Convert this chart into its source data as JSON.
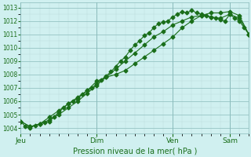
{
  "xlabel": "Pression niveau de la mer( hPa )",
  "bg_color": "#d0f0f0",
  "line_color": "#1a6e1a",
  "grid_major_color": "#8bbcbc",
  "grid_minor_color": "#b8dcdc",
  "ylim": [
    1003.6,
    1013.4
  ],
  "yticks": [
    1004,
    1005,
    1006,
    1007,
    1008,
    1009,
    1010,
    1011,
    1012,
    1013
  ],
  "xlim": [
    0,
    48
  ],
  "day_labels": [
    "Jeu",
    "Dim",
    "Ven",
    "Sam"
  ],
  "day_positions": [
    0,
    16,
    32,
    44
  ],
  "series1_x": [
    0,
    1,
    2,
    3,
    4,
    5,
    6,
    7,
    8,
    9,
    10,
    11,
    12,
    13,
    14,
    15,
    16,
    17,
    18,
    19,
    20,
    21,
    22,
    23,
    24,
    25,
    26,
    27,
    28,
    29,
    30,
    31,
    32,
    33,
    34,
    35,
    36,
    37,
    38,
    39,
    40,
    41,
    42,
    43,
    44,
    45,
    46,
    47,
    48
  ],
  "series1_y": [
    1004.5,
    1004.1,
    1004.0,
    1004.2,
    1004.3,
    1004.4,
    1004.5,
    1004.8,
    1005.2,
    1005.5,
    1005.8,
    1006.0,
    1006.2,
    1006.5,
    1006.8,
    1007.0,
    1007.3,
    1007.6,
    1007.9,
    1008.2,
    1008.6,
    1009.0,
    1009.3,
    1009.8,
    1010.2,
    1010.5,
    1010.9,
    1011.1,
    1011.5,
    1011.8,
    1011.9,
    1012.0,
    1012.3,
    1012.5,
    1012.7,
    1012.6,
    1012.8,
    1012.6,
    1012.5,
    1012.4,
    1012.3,
    1012.2,
    1012.1,
    1012.0,
    1012.5,
    1012.2,
    1012.0,
    1011.5,
    1011.0
  ],
  "series2_x": [
    0,
    2,
    4,
    6,
    8,
    10,
    12,
    14,
    16,
    18,
    20,
    22,
    24,
    26,
    28,
    30,
    32,
    34,
    36,
    38,
    40,
    42,
    44,
    46,
    48
  ],
  "series2_y": [
    1004.5,
    1004.1,
    1004.3,
    1004.6,
    1005.0,
    1005.5,
    1006.0,
    1006.6,
    1007.2,
    1007.8,
    1008.4,
    1009.0,
    1009.6,
    1010.2,
    1010.8,
    1011.2,
    1011.7,
    1012.0,
    1012.3,
    1012.4,
    1012.3,
    1012.2,
    1012.5,
    1012.2,
    1011.0
  ],
  "series3_x": [
    0,
    2,
    4,
    6,
    8,
    10,
    12,
    14,
    16,
    18,
    20,
    22,
    24,
    26,
    28,
    30,
    32,
    34,
    36,
    38,
    40,
    42,
    44,
    46,
    48
  ],
  "series3_y": [
    1004.5,
    1004.1,
    1004.3,
    1004.8,
    1005.3,
    1005.8,
    1006.3,
    1006.8,
    1007.5,
    1007.8,
    1008.0,
    1008.3,
    1008.8,
    1009.3,
    1009.8,
    1010.3,
    1010.8,
    1011.5,
    1012.0,
    1012.4,
    1012.6,
    1012.6,
    1012.7,
    1012.4,
    1011.0
  ]
}
